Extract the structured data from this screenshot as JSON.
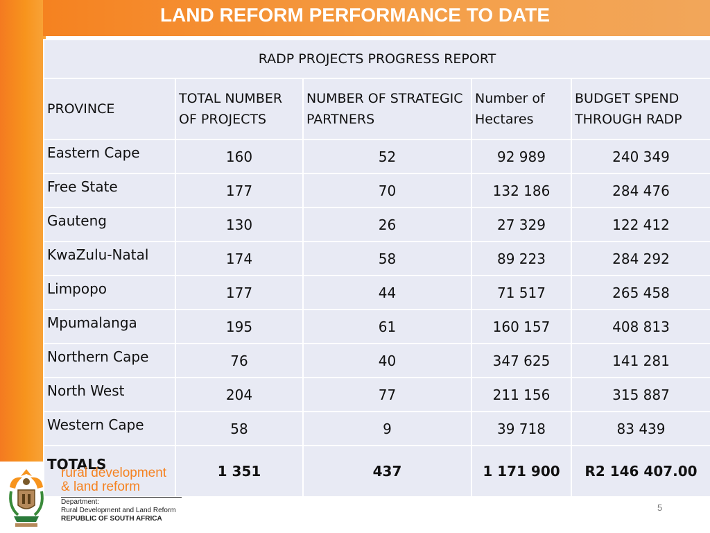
{
  "slide": {
    "title": "LAND REFORM PERFORMANCE TO DATE",
    "page_number": "5"
  },
  "table": {
    "report_title": "RADP PROJECTS PROGRESS  REPORT",
    "headers": [
      "PROVINCE",
      "TOTAL NUMBER OF PROJECTS",
      "NUMBER OF STRATEGIC PARTNERS",
      "Number of Hectares",
      "BUDGET SPEND THROUGH RADP"
    ],
    "rows": [
      [
        "Eastern Cape",
        "160",
        "52",
        "92 989",
        "240 349"
      ],
      [
        "Free State",
        "177",
        "70",
        "132 186",
        "284 476"
      ],
      [
        "Gauteng",
        "130",
        "26",
        "27 329",
        "122 412"
      ],
      [
        "KwaZulu-Natal",
        "174",
        "58",
        "89 223",
        "284 292"
      ],
      [
        "Limpopo",
        "177",
        "44",
        "71 517",
        "265 458"
      ],
      [
        "Mpumalanga",
        "195",
        "61",
        "160 157",
        "408 813"
      ],
      [
        "Northern Cape",
        "76",
        "40",
        "347 625",
        "141 281"
      ],
      [
        "North West",
        "204",
        "77",
        "211 156",
        "315 887"
      ],
      [
        "Western Cape",
        "58",
        "9",
        "39 718",
        "83 439"
      ]
    ],
    "totals": [
      "TOTALS",
      "1 351",
      "437",
      "1 171 900",
      "R2 146 407.00"
    ]
  },
  "footer": {
    "brand_line1": "rural development",
    "brand_line2": "& land reform",
    "dept_line1": "Department:",
    "dept_line2": "Rural Development and Land Reform",
    "dept_line3": "REPUBLIC OF SOUTH AFRICA",
    "logo_icon": "coat-of-arms-icon"
  },
  "colors": {
    "accent_orange": "#f58220",
    "table_cell": "#e8eaf4",
    "totals_row": "#f8c08e"
  }
}
